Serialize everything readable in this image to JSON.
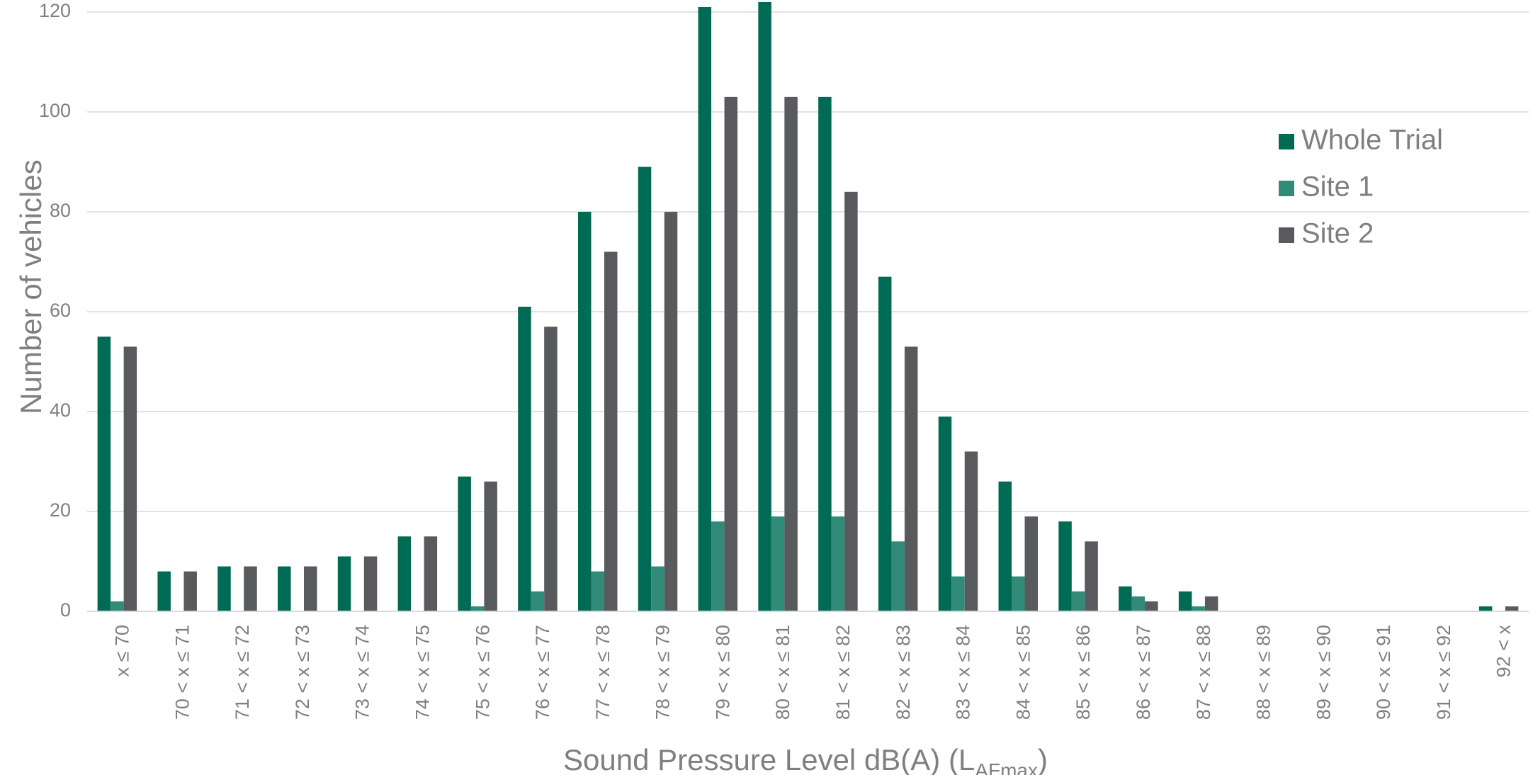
{
  "chart_data": {
    "type": "bar",
    "categories": [
      "x ≤ 70",
      "70 < x ≤ 71",
      "71 < x ≤ 72",
      "72 < x ≤ 73",
      "73 < x ≤ 74",
      "74 < x ≤ 75",
      "75 < x ≤ 76",
      "76 < x ≤ 77",
      "77 < x ≤ 78",
      "78 < x ≤ 79",
      "79 < x ≤ 80",
      "80 < x ≤ 81",
      "81 < x ≤ 82",
      "82 < x ≤ 83",
      "83 < x ≤ 84",
      "84 < x ≤ 85",
      "85 < x ≤ 86",
      "86 < x ≤ 87",
      "87 < x ≤ 88",
      "88 < x ≤ 89",
      "89 < x ≤ 90",
      "90 < x ≤ 91",
      "91 < x ≤ 92",
      "92 < x"
    ],
    "series": [
      {
        "name": "Whole Trial",
        "color": "#006b54",
        "values": [
          55,
          8,
          9,
          9,
          11,
          15,
          27,
          61,
          80,
          89,
          121,
          122,
          103,
          67,
          39,
          26,
          18,
          5,
          4,
          0,
          0,
          0,
          0,
          1
        ]
      },
      {
        "name": "Site 1",
        "color": "#328a78",
        "values": [
          2,
          0,
          0,
          0,
          0,
          0,
          1,
          4,
          8,
          9,
          18,
          19,
          19,
          14,
          7,
          7,
          4,
          3,
          1,
          0,
          0,
          0,
          0,
          0
        ]
      },
      {
        "name": "Site 2",
        "color": "#595a5e",
        "values": [
          53,
          8,
          9,
          9,
          11,
          15,
          26,
          57,
          72,
          80,
          103,
          103,
          84,
          53,
          32,
          19,
          14,
          2,
          3,
          0,
          0,
          0,
          0,
          1
        ]
      }
    ],
    "ylabel": "Number of vehicles",
    "xlabel_main": "Sound Pressure Level dB(A) (L",
    "xlabel_sub": "AFmax",
    "xlabel_end": ")",
    "ylim": [
      0,
      120
    ],
    "yticks": [
      "0",
      "20",
      "40",
      "60",
      "80",
      "100",
      "120"
    ],
    "grid": true,
    "legend_position": "top-right"
  }
}
